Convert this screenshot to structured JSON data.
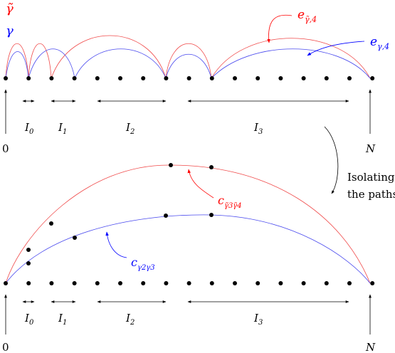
{
  "legend": {
    "gamma_tilde": "γ̃",
    "gamma": "γ"
  },
  "top_panel": {
    "callout_red": {
      "base": "e",
      "sub": "γ̃,4"
    },
    "callout_blue": {
      "base": "e",
      "sub": "γ,4"
    },
    "intervals": [
      {
        "base": "I",
        "sub": "0"
      },
      {
        "base": "I",
        "sub": "1"
      },
      {
        "base": "I",
        "sub": "2"
      },
      {
        "base": "I",
        "sub": "3"
      }
    ],
    "start_label": "0",
    "end_label": "N"
  },
  "transition": {
    "line1": "Isolating",
    "line2": "the paths"
  },
  "bottom_panel": {
    "callout_red": {
      "base": "c",
      "sub": "γ̃3γ̃4"
    },
    "callout_blue": {
      "base": "c",
      "sub": "γ2γ3"
    },
    "intervals": [
      {
        "base": "I",
        "sub": "0"
      },
      {
        "base": "I",
        "sub": "1"
      },
      {
        "base": "I",
        "sub": "2"
      },
      {
        "base": "I",
        "sub": "3"
      }
    ],
    "start_label": "0",
    "end_label": "N"
  },
  "colors": {
    "red_path": "#ff0000",
    "blue_path": "#0000ff",
    "red_arc": "#f04a4a",
    "blue_arc": "#4a4aee",
    "axis": "#000000"
  }
}
